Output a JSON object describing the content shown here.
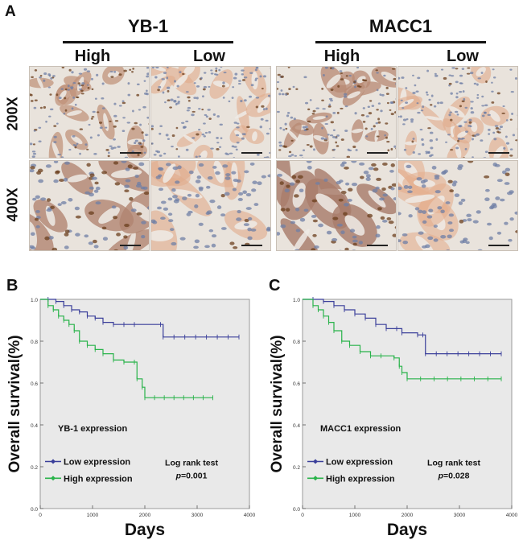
{
  "panel_a": {
    "letter": "A",
    "groups": [
      {
        "title": "YB-1",
        "cols": [
          "High",
          "Low"
        ]
      },
      {
        "title": "MACC1",
        "cols": [
          "High",
          "Low"
        ]
      }
    ],
    "rows": [
      "200X",
      "400X"
    ]
  },
  "chart_data": [
    {
      "type": "line",
      "panel": "B",
      "title": "YB-1 expression",
      "xlabel": "Days",
      "ylabel": "Overall survival(%)",
      "xlim": [
        0,
        4000
      ],
      "ylim": [
        0,
        1.0
      ],
      "xticks": [
        0,
        1000,
        2000,
        3000,
        4000
      ],
      "yticks": [
        0.0,
        0.2,
        0.4,
        0.6,
        0.8,
        1.0
      ],
      "legend": [
        "Low expression",
        "High expression"
      ],
      "annotation": {
        "line1": "Log rank test",
        "p_label": "p",
        "p_value": "=0.001"
      },
      "series": [
        {
          "name": "Low expression",
          "color": "#3a3f9a",
          "x": [
            0,
            150,
            300,
            450,
            600,
            750,
            900,
            1050,
            1200,
            1400,
            1600,
            1800,
            2300,
            2350,
            3800
          ],
          "y": [
            1.0,
            1.0,
            0.99,
            0.97,
            0.95,
            0.94,
            0.92,
            0.91,
            0.89,
            0.88,
            0.88,
            0.88,
            0.88,
            0.82,
            0.82
          ]
        },
        {
          "name": "High expression",
          "color": "#29b34a",
          "x": [
            0,
            150,
            250,
            350,
            450,
            550,
            650,
            750,
            900,
            1050,
            1200,
            1400,
            1600,
            1800,
            1850,
            1950,
            2000,
            3300
          ],
          "y": [
            1.0,
            0.97,
            0.95,
            0.92,
            0.9,
            0.88,
            0.85,
            0.8,
            0.78,
            0.76,
            0.74,
            0.71,
            0.7,
            0.7,
            0.62,
            0.58,
            0.53,
            0.53
          ]
        }
      ]
    },
    {
      "type": "line",
      "panel": "C",
      "title": "MACC1 expression",
      "xlabel": "Days",
      "ylabel": "Overall survival(%)",
      "xlim": [
        0,
        4000
      ],
      "ylim": [
        0,
        1.0
      ],
      "xticks": [
        0,
        1000,
        2000,
        3000,
        4000
      ],
      "yticks": [
        0.0,
        0.2,
        0.4,
        0.6,
        0.8,
        1.0
      ],
      "legend": [
        "Low expression",
        "High expression"
      ],
      "annotation": {
        "line1": "Log rank test",
        "p_label": "p",
        "p_value": "=0.028"
      },
      "series": [
        {
          "name": "Low expression",
          "color": "#3a3f9a",
          "x": [
            0,
            200,
            400,
            600,
            800,
            1000,
            1200,
            1400,
            1600,
            1800,
            1900,
            2200,
            2300,
            2350,
            3800
          ],
          "y": [
            1.0,
            1.0,
            0.99,
            0.97,
            0.95,
            0.93,
            0.91,
            0.88,
            0.86,
            0.86,
            0.84,
            0.83,
            0.83,
            0.74,
            0.74
          ]
        },
        {
          "name": "High expression",
          "color": "#29b34a",
          "x": [
            0,
            200,
            300,
            400,
            500,
            600,
            750,
            900,
            1100,
            1300,
            1500,
            1750,
            1850,
            1900,
            2000,
            3800
          ],
          "y": [
            1.0,
            0.97,
            0.95,
            0.92,
            0.89,
            0.85,
            0.8,
            0.78,
            0.75,
            0.73,
            0.73,
            0.72,
            0.68,
            0.65,
            0.62,
            0.62
          ]
        }
      ]
    }
  ]
}
